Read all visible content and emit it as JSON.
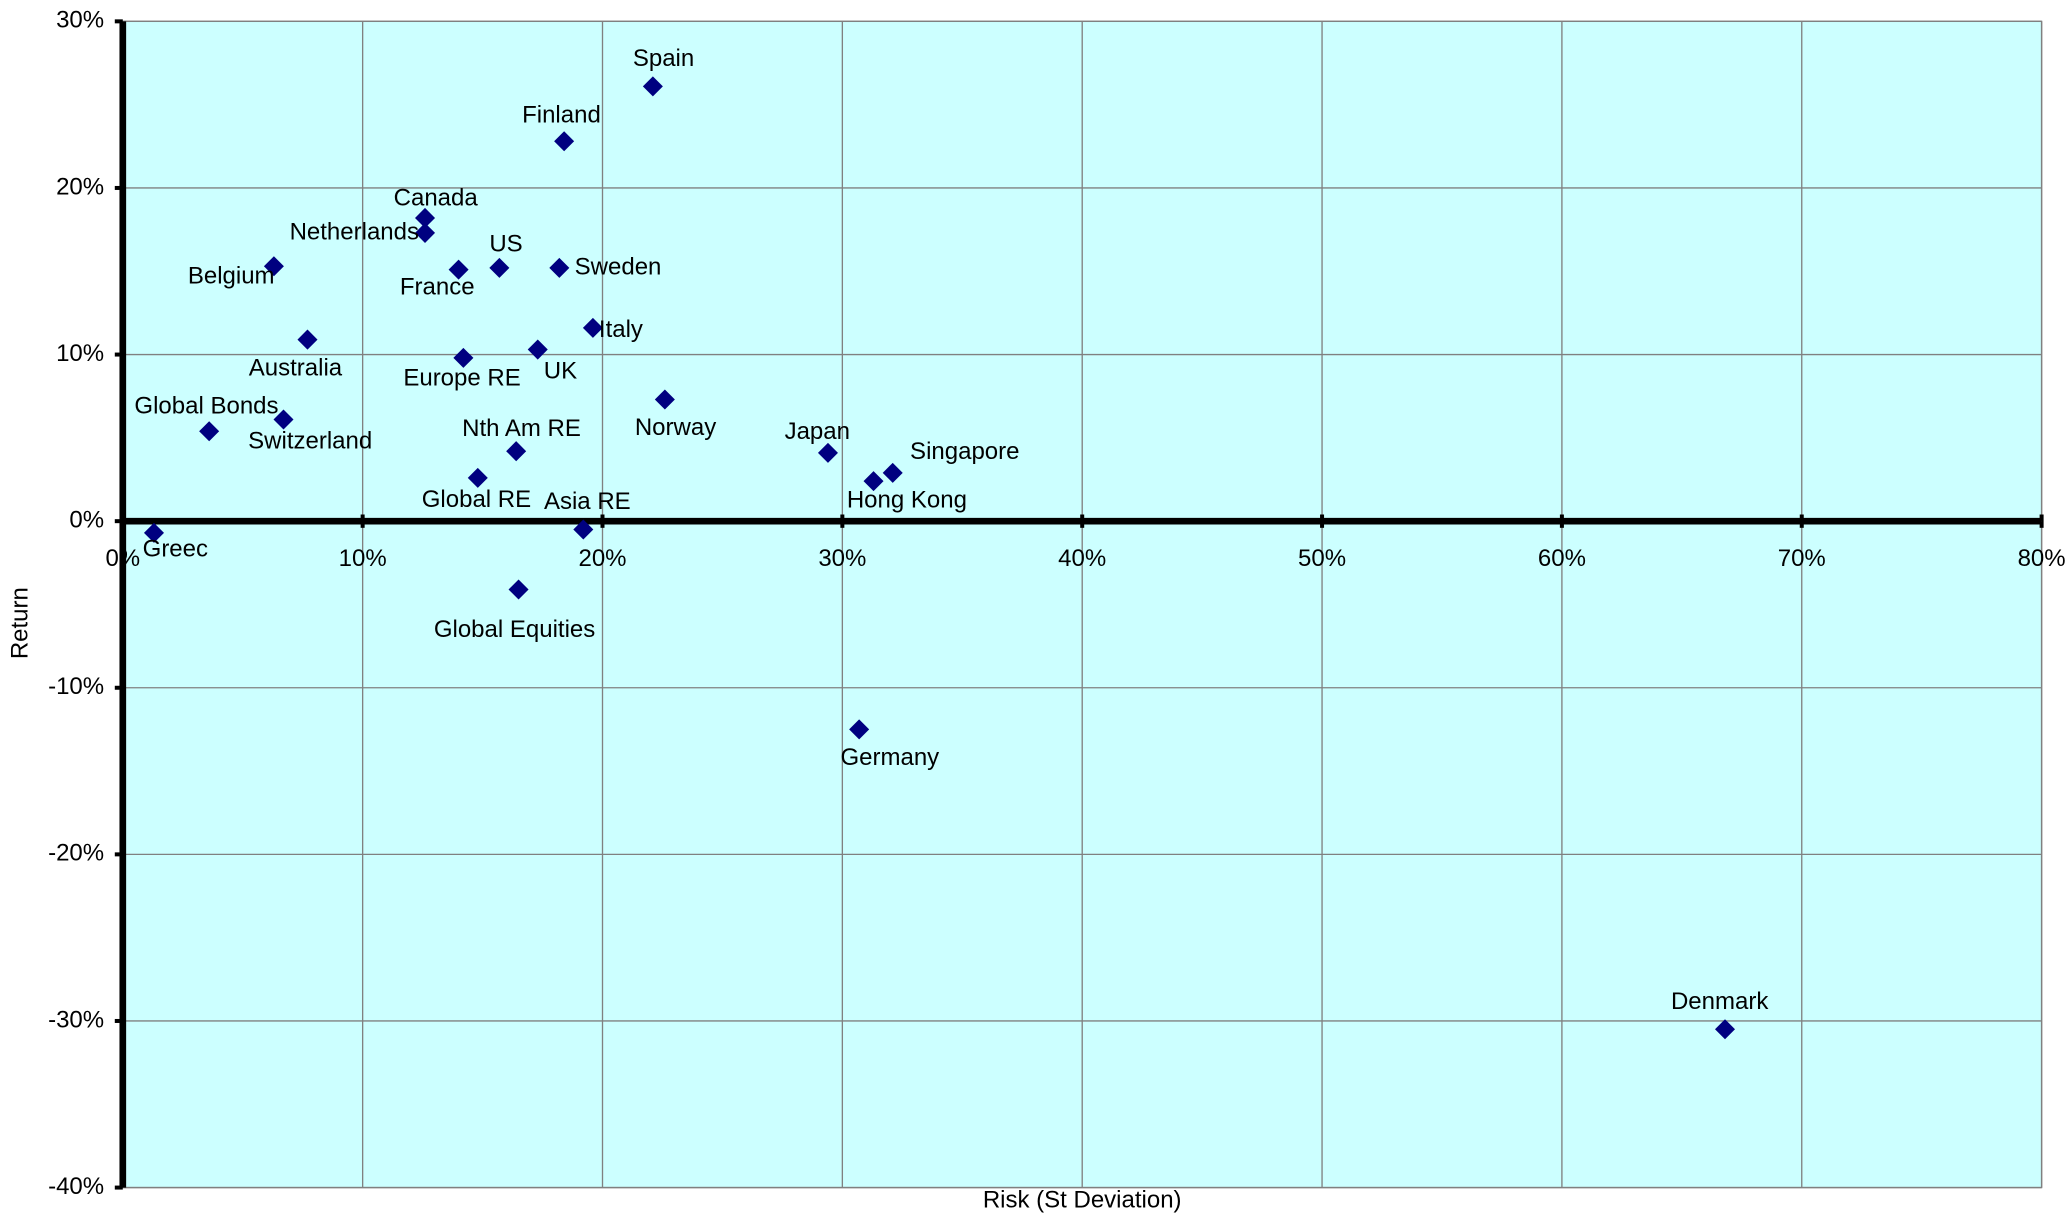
{
  "chart_data": {
    "type": "scatter",
    "xlabel": "Risk (St Deviation)",
    "ylabel": "Return",
    "labels": [
      "Spain",
      "Finland",
      "Canada",
      "Netherlands",
      "Belgium",
      "France",
      "US",
      "Sweden",
      "Italy",
      "Australia",
      "Europe RE",
      "UK",
      "Norway",
      "Global Bonds",
      "Switzerland",
      "Nth Am RE",
      "Japan",
      "Singapore",
      "Hong Kong",
      "Global RE",
      "Asia RE",
      "Greec",
      "Global Equities",
      "Germany",
      "Denmark"
    ],
    "x": [
      22.1,
      18.4,
      12.6,
      12.6,
      6.3,
      14.0,
      15.7,
      18.2,
      19.6,
      7.7,
      14.2,
      17.3,
      22.6,
      3.6,
      6.7,
      16.4,
      29.4,
      32.1,
      31.3,
      14.8,
      19.2,
      1.3,
      16.5,
      30.7,
      66.8
    ],
    "values": [
      26.1,
      22.8,
      18.2,
      17.3,
      15.3,
      15.1,
      15.2,
      15.2,
      11.6,
      10.9,
      9.8,
      10.3,
      7.3,
      5.4,
      6.1,
      4.2,
      4.1,
      2.9,
      2.4,
      2.6,
      -0.5,
      -0.7,
      -4.1,
      -12.5,
      -30.5
    ],
    "color": "#000080",
    "background": "#ccffff",
    "grid": true,
    "xlim": [
      0,
      80
    ],
    "ylim": [
      -40,
      30
    ],
    "xticks": [
      {
        "value": 0,
        "label": "0%"
      },
      {
        "value": 10,
        "label": "10%"
      },
      {
        "value": 20,
        "label": "20%"
      },
      {
        "value": 30,
        "label": "30%"
      },
      {
        "value": 40,
        "label": "40%"
      },
      {
        "value": 50,
        "label": "50%"
      },
      {
        "value": 60,
        "label": "60%"
      },
      {
        "value": 70,
        "label": "70%"
      },
      {
        "value": 80,
        "label": "80%"
      }
    ],
    "yticks": [
      {
        "value": -40,
        "label": "-40%"
      },
      {
        "value": -30,
        "label": "-30%"
      },
      {
        "value": -20,
        "label": "-20%"
      },
      {
        "value": -10,
        "label": "-10%"
      },
      {
        "value": 0,
        "label": "0%"
      },
      {
        "value": 10,
        "label": "10%"
      },
      {
        "value": 20,
        "label": "20%"
      },
      {
        "value": 30,
        "label": "30%"
      }
    ]
  }
}
